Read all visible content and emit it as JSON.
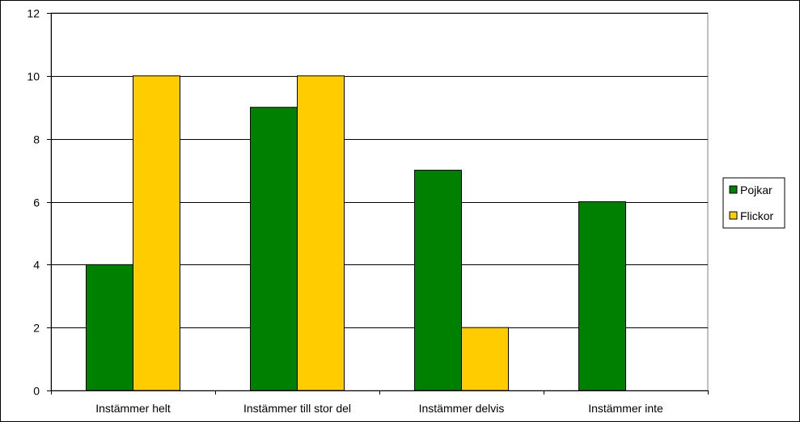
{
  "chart_data": {
    "type": "bar",
    "title": "",
    "xlabel": "",
    "ylabel": "",
    "categories": [
      "Instämmer helt",
      "Instämmer till stor del",
      "Instämmer delvis",
      "Instämmer inte"
    ],
    "series": [
      {
        "name": "Pojkar",
        "values": [
          4,
          9,
          7,
          6
        ],
        "color": "#008000"
      },
      {
        "name": "Flickor",
        "values": [
          10,
          10,
          2,
          0
        ],
        "color": "#FFCC00"
      }
    ],
    "ylim": [
      0,
      12
    ],
    "yticks": [
      0,
      2,
      4,
      6,
      8,
      10,
      12
    ],
    "grid": true,
    "legend_position": "right"
  }
}
